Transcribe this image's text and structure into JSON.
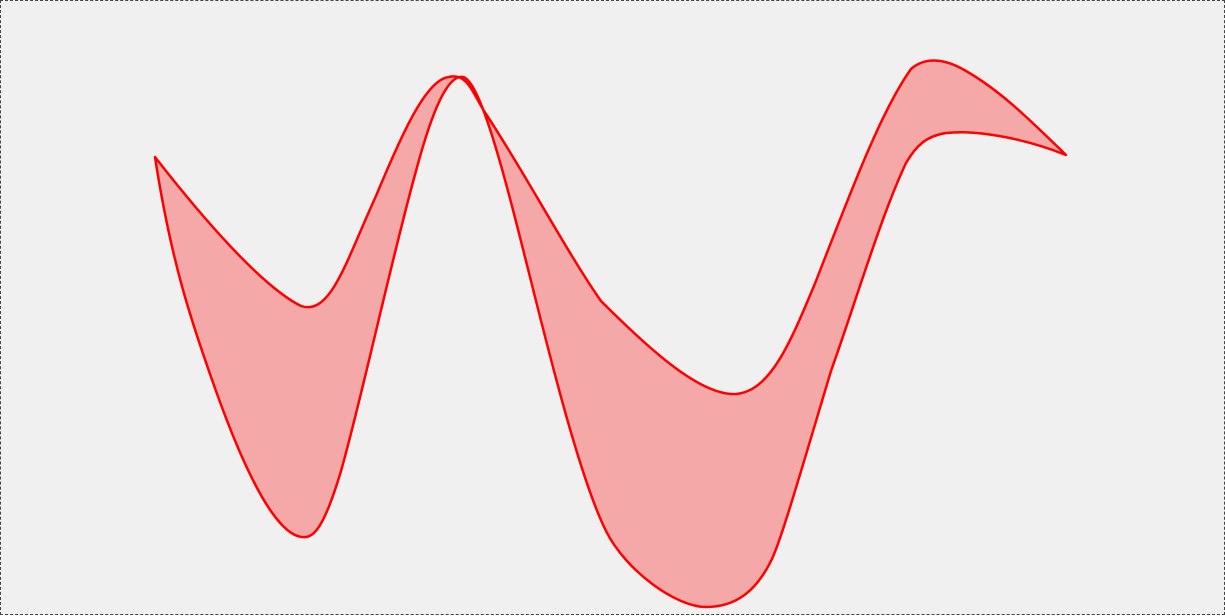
{
  "canvas": {
    "background_color": "#f0f0f0",
    "border_style": "dashed"
  },
  "shape": {
    "type": "curved-ribbon-band",
    "fill_color": "#f5a8a8",
    "stroke_color": "#ff0000"
  }
}
